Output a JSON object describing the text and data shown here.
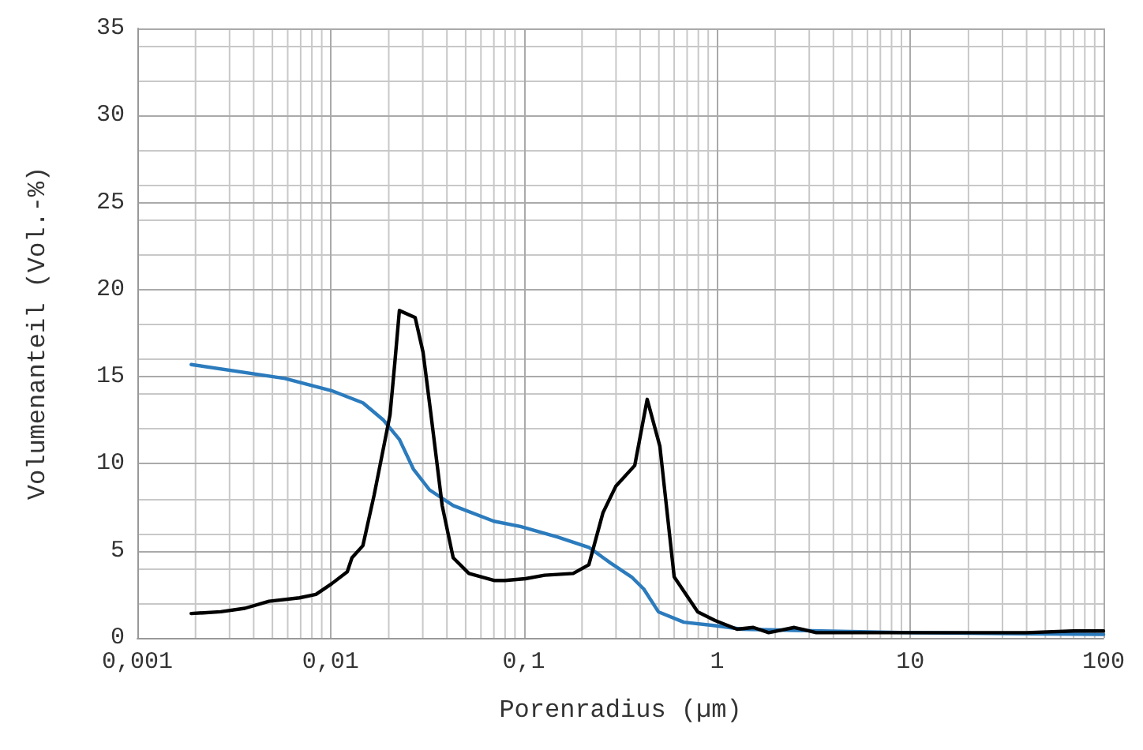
{
  "chart_data": {
    "type": "line",
    "xlabel": "Porenradius (µm)",
    "ylabel": "Volumenanteil (Vol.-%)",
    "log": "x",
    "grid": true,
    "marker": "none",
    "line_style": "solid",
    "xlim": [
      0.001,
      100
    ],
    "xticks": [
      {
        "value": 0.001,
        "label": "0,001"
      },
      {
        "value": 0.01,
        "label": "0,01"
      },
      {
        "value": 0.1,
        "label": "0,1"
      },
      1,
      10,
      100
    ],
    "ylim": [
      0,
      35
    ],
    "yticks": [
      0,
      5,
      10,
      15,
      20,
      25,
      30,
      35
    ],
    "series": [
      {
        "color": "#2b7bbd",
        "x": [
          0.0019,
          0.0058,
          0.0101,
          0.0147,
          0.0188,
          0.0227,
          0.0268,
          0.0325,
          0.0431,
          0.07,
          0.096,
          0.149,
          0.217,
          0.281,
          0.361,
          0.418,
          0.497,
          0.673,
          0.977,
          1.35,
          3.43,
          10,
          100
        ],
        "values": [
          15.7,
          14.9,
          14.2,
          13.5,
          12.5,
          11.4,
          9.7,
          8.5,
          7.6,
          6.7,
          6.4,
          5.8,
          5.2,
          4.3,
          3.5,
          2.8,
          1.5,
          0.9,
          0.7,
          0.5,
          0.4,
          0.3,
          0.2
        ]
      },
      {
        "color": "#000000",
        "x": [
          0.0019,
          0.0027,
          0.0036,
          0.0048,
          0.0069,
          0.0084,
          0.0101,
          0.0122,
          0.0129,
          0.0147,
          0.0168,
          0.0203,
          0.0215,
          0.0227,
          0.0274,
          0.0301,
          0.0331,
          0.0378,
          0.0431,
          0.052,
          0.07,
          0.08,
          0.102,
          0.128,
          0.18,
          0.217,
          0.257,
          0.299,
          0.375,
          0.435,
          0.506,
          0.6,
          0.794,
          0.977,
          1.27,
          1.54,
          1.85,
          2.51,
          3.26,
          5,
          10,
          20,
          40,
          70,
          100
        ],
        "values": [
          1.4,
          1.5,
          1.7,
          2.1,
          2.3,
          2.5,
          3.1,
          3.8,
          4.6,
          5.3,
          8.2,
          12.8,
          15.8,
          18.8,
          18.4,
          16.4,
          12.8,
          7.6,
          4.6,
          3.7,
          3.3,
          3.3,
          3.4,
          3.6,
          3.7,
          4.2,
          7.2,
          8.7,
          9.9,
          13.7,
          11.0,
          3.5,
          1.5,
          1.0,
          0.5,
          0.6,
          0.3,
          0.6,
          0.3,
          0.3,
          0.3,
          0.3,
          0.3,
          0.4,
          0.4
        ]
      }
    ]
  }
}
